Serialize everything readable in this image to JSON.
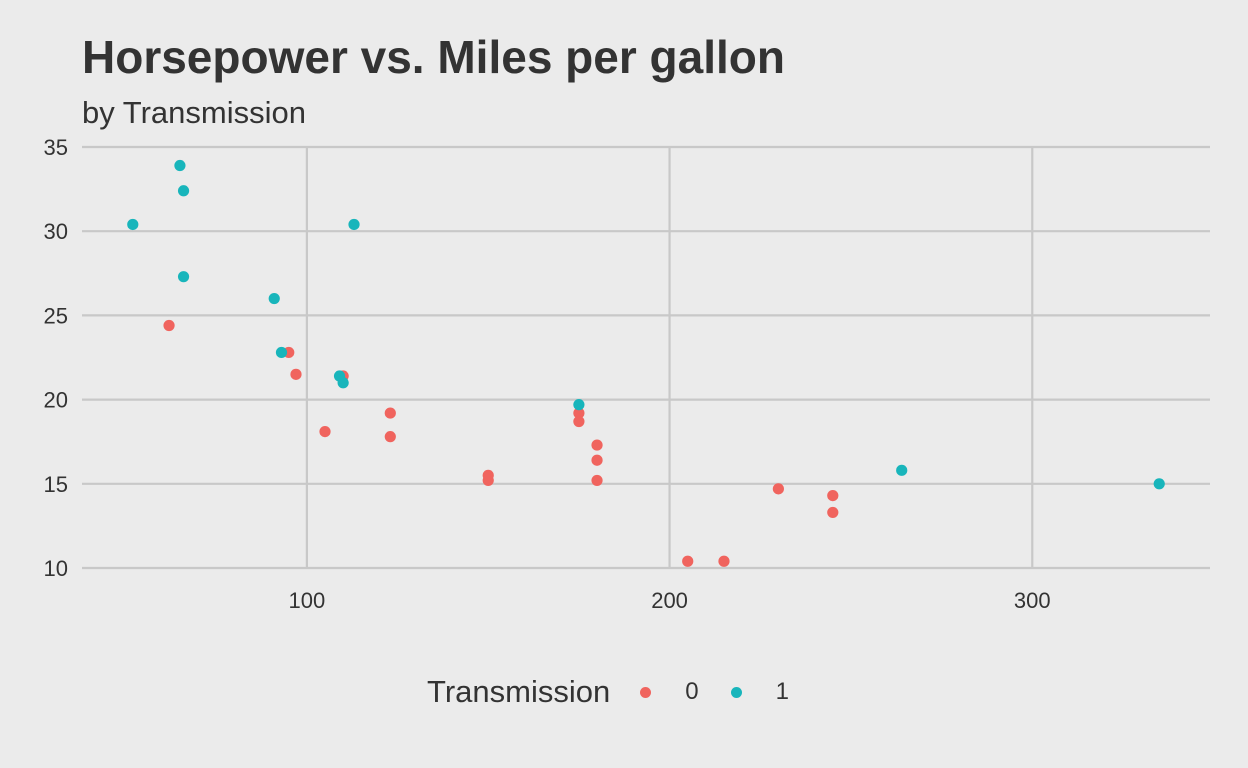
{
  "colors": {
    "background": "#EBEBEB",
    "grid": "#C8C8C8",
    "text": "#333333",
    "series_0": "#F0645E",
    "series_1": "#18B5BB"
  },
  "chart_data": {
    "type": "scatter",
    "title": "Horsepower vs. Miles per gallon",
    "subtitle": "by Transmission",
    "xlabel": "",
    "ylabel": "",
    "xlim": [
      38,
      349
    ],
    "ylim": [
      10,
      35
    ],
    "x_ticks": [
      100,
      200,
      300
    ],
    "y_ticks": [
      10,
      15,
      20,
      25,
      30,
      35
    ],
    "grid": true,
    "legend": {
      "title": "Transmission",
      "placement": "bottom",
      "entries": [
        "0",
        "1"
      ]
    },
    "series": [
      {
        "name": "0",
        "color": "#F0645E",
        "points": [
          {
            "x": 110,
            "y": 21.4
          },
          {
            "x": 175,
            "y": 18.7
          },
          {
            "x": 105,
            "y": 18.1
          },
          {
            "x": 245,
            "y": 14.3
          },
          {
            "x": 62,
            "y": 24.4
          },
          {
            "x": 95,
            "y": 22.8
          },
          {
            "x": 123,
            "y": 19.2
          },
          {
            "x": 123,
            "y": 17.8
          },
          {
            "x": 180,
            "y": 16.4
          },
          {
            "x": 180,
            "y": 17.3
          },
          {
            "x": 180,
            "y": 15.2
          },
          {
            "x": 205,
            "y": 10.4
          },
          {
            "x": 215,
            "y": 10.4
          },
          {
            "x": 230,
            "y": 14.7
          },
          {
            "x": 97,
            "y": 21.5
          },
          {
            "x": 150,
            "y": 15.5
          },
          {
            "x": 150,
            "y": 15.2
          },
          {
            "x": 245,
            "y": 13.3
          },
          {
            "x": 175,
            "y": 19.2
          }
        ]
      },
      {
        "name": "1",
        "color": "#18B5BB",
        "points": [
          {
            "x": 110,
            "y": 21.0
          },
          {
            "x": 109,
            "y": 21.4
          },
          {
            "x": 93,
            "y": 22.8
          },
          {
            "x": 66,
            "y": 32.4
          },
          {
            "x": 52,
            "y": 30.4
          },
          {
            "x": 65,
            "y": 33.9
          },
          {
            "x": 66,
            "y": 27.3
          },
          {
            "x": 91,
            "y": 26.0
          },
          {
            "x": 113,
            "y": 30.4
          },
          {
            "x": 264,
            "y": 15.8
          },
          {
            "x": 175,
            "y": 19.7
          },
          {
            "x": 335,
            "y": 15.0
          }
        ]
      }
    ]
  }
}
